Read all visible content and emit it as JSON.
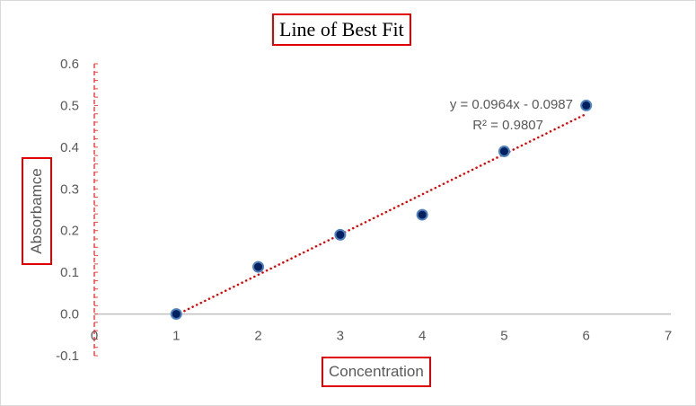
{
  "chart_data": {
    "type": "scatter",
    "title": "Line of Best Fit",
    "xlabel": "Concentration",
    "ylabel": "Absorbamce",
    "xlim": [
      0,
      7
    ],
    "ylim": [
      -0.1,
      0.6
    ],
    "xticks": [
      "0",
      "1",
      "2",
      "3",
      "4",
      "5",
      "6",
      "7"
    ],
    "yticks": [
      "-0.1",
      "0.0",
      "0.1",
      "0.2",
      "0.3",
      "0.4",
      "0.5",
      "0.6"
    ],
    "series": [
      {
        "name": "Absorbance",
        "x": [
          1,
          2,
          3,
          4,
          5,
          6
        ],
        "y": [
          0.0,
          0.113,
          0.19,
          0.238,
          0.39,
          0.5
        ],
        "color": "#002060"
      }
    ],
    "trendline": {
      "type": "linear",
      "slope": 0.0964,
      "intercept": -0.0987,
      "color": "#e00000",
      "equation": "y = 0.0964x - 0.0987",
      "r2": "R² = 0.9807"
    },
    "grid": false,
    "legend": "none"
  }
}
